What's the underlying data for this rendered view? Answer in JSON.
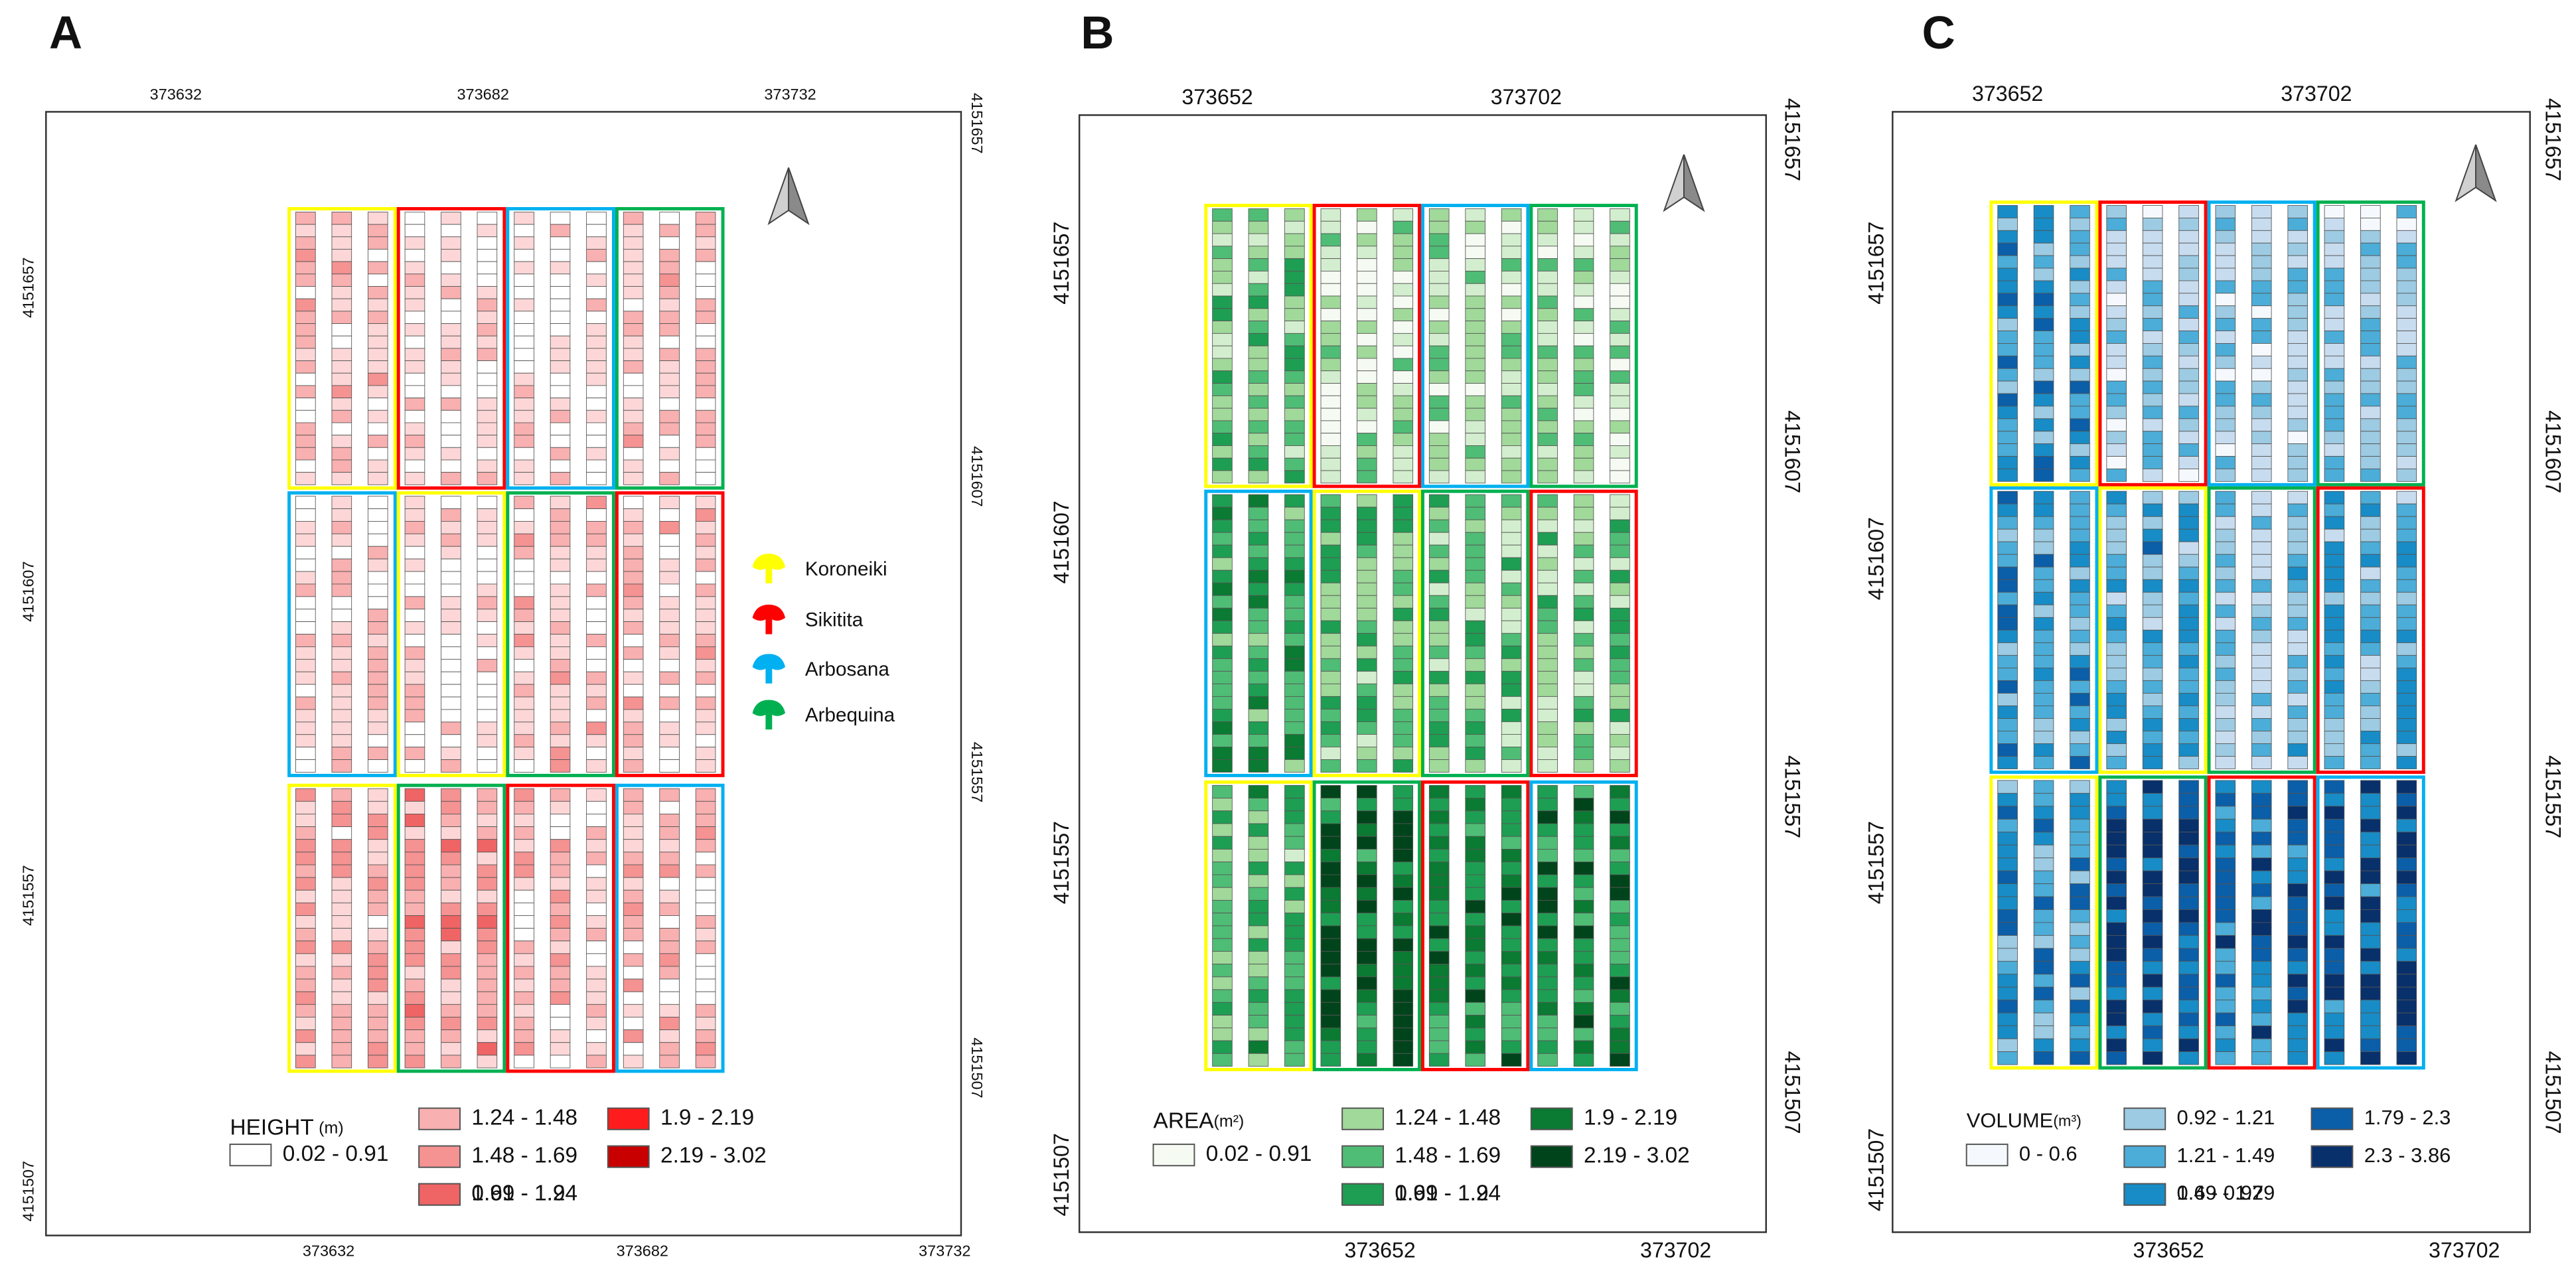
{
  "panels": [
    {
      "letter": "A",
      "top_ticks": [
        "373632",
        "373682",
        "373732"
      ],
      "bottom_ticks": [
        "373632",
        "373682",
        "373732"
      ],
      "left_ticks": [
        "4151657",
        "4151607",
        "4151557",
        "4151507"
      ],
      "right_ticks": [
        "4151657",
        "4151607",
        "4151557",
        "4151507"
      ],
      "legend": {
        "title": "HEIGHT",
        "unit": "(m)",
        "classes": [
          {
            "label": "0.02 - 0.91",
            "color": "#ffffff"
          },
          {
            "label": "0.91 - 1.24",
            "color": "#fdd7d7"
          },
          {
            "label": "1.24 - 1.48",
            "color": "#f9b0b0"
          },
          {
            "label": "1.48 - 1.69",
            "color": "#f59292"
          },
          {
            "label": "1.69 - 1.9",
            "color": "#ef6464"
          },
          {
            "label": "1.9 - 2.19",
            "color": "#ff1c1c"
          },
          {
            "label": "2.19 - 3.02",
            "color": "#c80000"
          }
        ]
      }
    },
    {
      "letter": "B",
      "top_ticks": [
        "373652",
        "373702"
      ],
      "bottom_ticks": [
        "373652",
        "373702"
      ],
      "left_ticks": [
        "4151657",
        "4151607",
        "4151557",
        "4151507"
      ],
      "right_ticks": [
        "4151657",
        "4151607",
        "4151557",
        "4151507"
      ],
      "legend": {
        "title": "AREA",
        "unit": "(m²)",
        "classes": [
          {
            "label": "0.02 - 0.91",
            "color": "#f5fbf2"
          },
          {
            "label": "0.91 - 1.24",
            "color": "#d3eece"
          },
          {
            "label": "1.24 - 1.48",
            "color": "#a0d99a"
          },
          {
            "label": "1.48 - 1.69",
            "color": "#4fbd75"
          },
          {
            "label": "1.69 - 1.9",
            "color": "#1e9e52"
          },
          {
            "label": "1.9 - 2.19",
            "color": "#0b7a32"
          },
          {
            "label": "2.19 - 3.02",
            "color": "#00441b"
          }
        ]
      }
    },
    {
      "letter": "C",
      "top_ticks": [
        "373652",
        "373702"
      ],
      "bottom_ticks": [
        "373652",
        "373702"
      ],
      "left_ticks": [
        "4151657",
        "4151607",
        "4151557",
        "4151507"
      ],
      "right_ticks": [
        "4151657",
        "4151607",
        "4151557",
        "4151507"
      ],
      "legend": {
        "title": "VOLUME",
        "unit": "(m³)",
        "classes": [
          {
            "label": "0 - 0.6",
            "color": "#f5f9fe"
          },
          {
            "label": "0.6 - 0.92",
            "color": "#c8dcef"
          },
          {
            "label": "0.92 - 1.21",
            "color": "#9ccbe3"
          },
          {
            "label": "1.21 - 1.49",
            "color": "#4badd8"
          },
          {
            "label": "1.49 - 1.79",
            "color": "#178cc6"
          },
          {
            "label": "1.79 - 2.3",
            "color": "#0b5ea8"
          },
          {
            "label": "2.3 - 3.86",
            "color": "#08306b"
          }
        ]
      }
    }
  ],
  "varieties": [
    {
      "name": "Koroneiki",
      "color": "#ffff00"
    },
    {
      "name": "Sikitita",
      "color": "#ff0000"
    },
    {
      "name": "Arbosana",
      "color": "#00b0f0"
    },
    {
      "name": "Arbequina",
      "color": "#00b050"
    }
  ]
}
